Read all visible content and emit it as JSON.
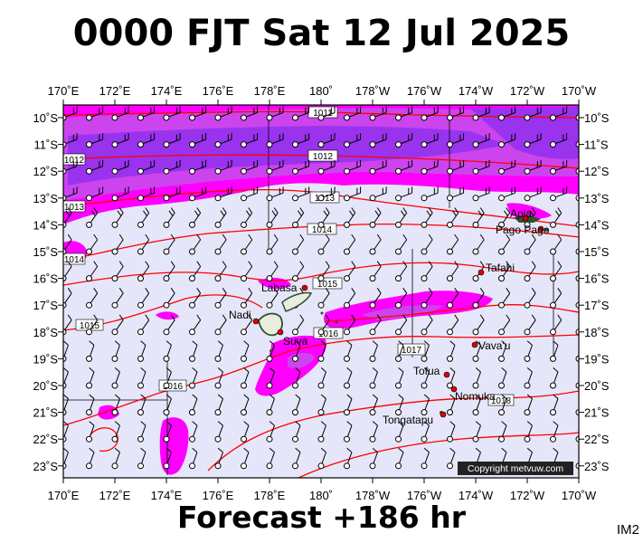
{
  "title": "0000 FJT Sat 12 Jul 2025",
  "footer": "Forecast +186 hr",
  "code": "IM2",
  "copyright": "Copyright metvuw.com",
  "lon_labels": [
    "170˚E",
    "172˚E",
    "174˚E",
    "176˚E",
    "178˚E",
    "180˚",
    "178˚W",
    "176˚W",
    "174˚W",
    "172˚W",
    "170˚W"
  ],
  "lat_labels": [
    "10˚S",
    "11˚S",
    "12˚S",
    "13˚S",
    "14˚S",
    "15˚S",
    "16˚S",
    "17˚S",
    "18˚S",
    "19˚S",
    "20˚S",
    "21˚S",
    "22˚S",
    "23˚S"
  ],
  "isobars": [
    "1011",
    "1012",
    "1012",
    "1013",
    "1013",
    "1014",
    "1014",
    "1015",
    "1015",
    "1016",
    "1016",
    "1016",
    "1017",
    "1018"
  ],
  "places": [
    "Apia",
    "Pago Pago",
    "Tafahi",
    "Labasa",
    "Nadi",
    "Suva",
    "Vava'u",
    "Tofua",
    "Nomuka",
    "Tongatapu"
  ],
  "colors": {
    "ocean": "#e6e6fa",
    "rain_light": "#ff00ff",
    "rain_medium": "#cc44ee",
    "rain_heavy": "#9933ee",
    "isobar": "#ff0000",
    "wind": "#000000",
    "land": "#2f4f2f"
  },
  "map": {
    "projection": "equirectangular",
    "lon_range": [
      "170˚E",
      "170˚W"
    ],
    "lat_range": [
      "10˚S",
      "23˚S"
    ],
    "content": "mean sea-level pressure isobars (hPa), wind barbs, precipitation shading"
  }
}
